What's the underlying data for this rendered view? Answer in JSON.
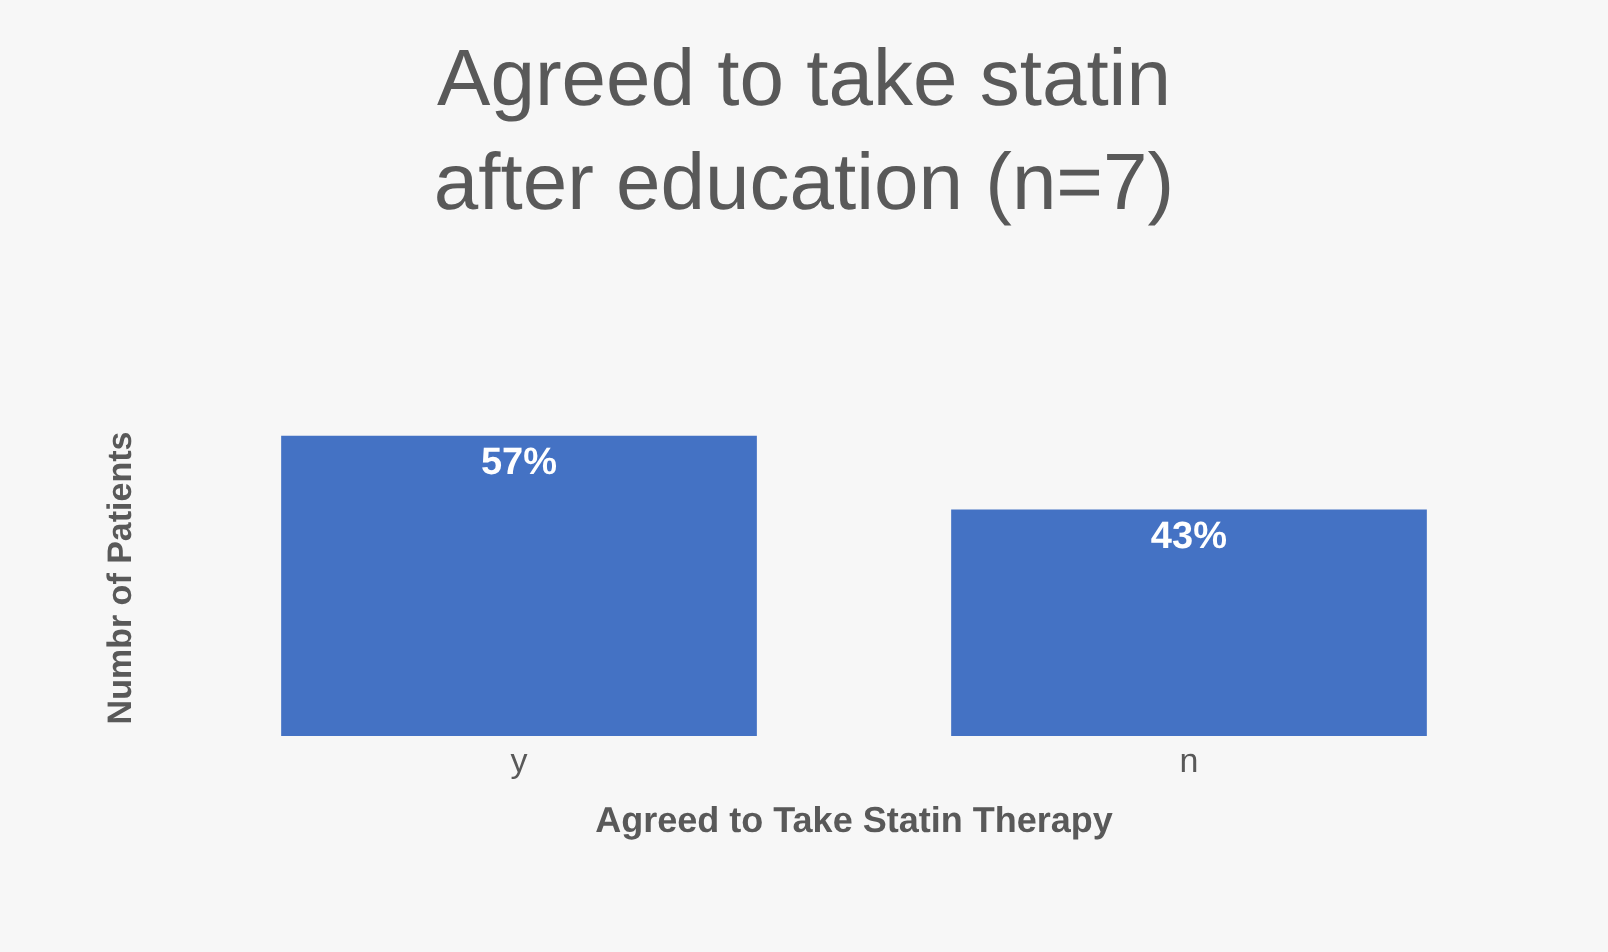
{
  "chart_data": {
    "type": "bar",
    "title": "Agreed to take statin after education (n=7)",
    "xlabel": "Agreed to Take Statin Therapy",
    "ylabel": "Numbr of Patients",
    "categories": [
      "y",
      "n"
    ],
    "values": [
      57,
      43
    ],
    "value_labels": [
      "57%",
      "43%"
    ],
    "color": "#4472c4",
    "grid": false
  }
}
